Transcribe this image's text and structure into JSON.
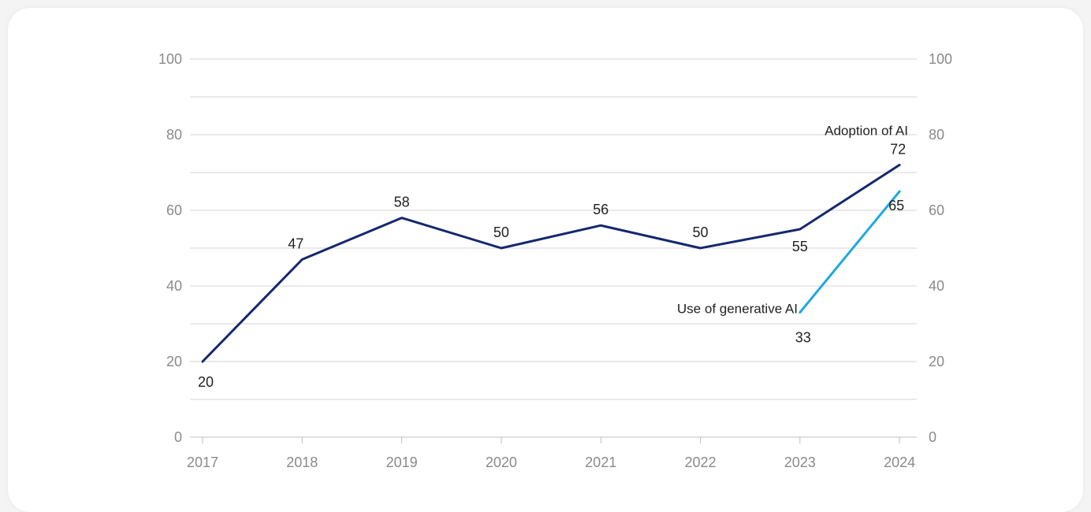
{
  "chart_data": {
    "type": "line",
    "x": [
      "2017",
      "2018",
      "2019",
      "2020",
      "2021",
      "2022",
      "2023",
      "2024"
    ],
    "ylim": [
      0,
      100
    ],
    "y_ticks": [
      "0",
      "20",
      "40",
      "60",
      "80",
      "100"
    ],
    "y_ticks_right": [
      "0",
      "20",
      "40",
      "60",
      "80",
      "100"
    ],
    "grid": true,
    "series": [
      {
        "name": "Adoption of AI",
        "color": "#14286e",
        "x": [
          "2017",
          "2018",
          "2019",
          "2020",
          "2021",
          "2022",
          "2023",
          "2024"
        ],
        "values": [
          20,
          47,
          58,
          50,
          56,
          50,
          55,
          72
        ],
        "labels": [
          "20",
          "47",
          "58",
          "50",
          "56",
          "50",
          "55",
          "72"
        ]
      },
      {
        "name": "Use of generative AI",
        "color": "#1ea8e0",
        "x": [
          "2023",
          "2024"
        ],
        "values": [
          33,
          65
        ],
        "labels": [
          "33",
          "65"
        ]
      }
    ]
  }
}
